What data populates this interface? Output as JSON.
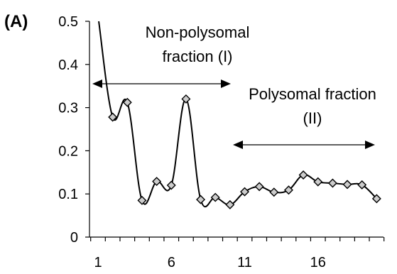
{
  "panel_label": "(A)",
  "chart_data": {
    "type": "line",
    "x": [
      1,
      2,
      3,
      4,
      5,
      6,
      7,
      8,
      9,
      10,
      11,
      12,
      13,
      14,
      15,
      16,
      17,
      18,
      19,
      20
    ],
    "series": [
      {
        "values": [
          0.5,
          0.278,
          0.312,
          0.085,
          0.129,
          0.12,
          0.32,
          0.087,
          0.092,
          0.075,
          0.105,
          0.117,
          0.104,
          0.109,
          0.144,
          0.128,
          0.125,
          0.122,
          0.121,
          0.089
        ],
        "marker_from_index": 1
      }
    ],
    "xticks": [
      "1",
      "6",
      "11",
      "16"
    ],
    "yticks": [
      "0",
      "0.1",
      "0.2",
      "0.3",
      "0.4",
      "0.5"
    ],
    "ylim": [
      0,
      0.5
    ],
    "grid": false,
    "annotations": {
      "non_polysomal_line1": "Non-polysomal",
      "non_polysomal_line2": "fraction (I)",
      "polysomal_line1": "Polysomal fraction",
      "polysomal_line2": "(II)"
    },
    "colors": {
      "line": "#000000",
      "marker_fill": "#cccccc"
    }
  }
}
